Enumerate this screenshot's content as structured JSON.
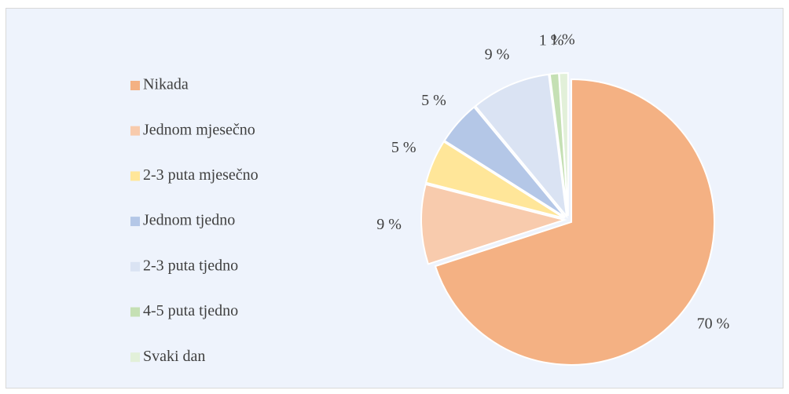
{
  "chart_data": {
    "type": "pie",
    "categories": [
      "Nikada",
      "Jednom mjesečno",
      "2-3 puta mjesečno",
      "Jednom tjedno",
      "2-3 puta tjedno",
      "4-5 puta tjedno",
      "Svaki dan"
    ],
    "values": [
      70,
      9,
      5,
      5,
      9,
      1,
      1
    ],
    "value_labels": [
      "70 %",
      "9 %",
      "5 %",
      "5 %",
      "9 %",
      "1 %",
      "1 %"
    ],
    "colors": [
      "#f4b183",
      "#f8cbad",
      "#ffe699",
      "#b4c7e7",
      "#dae3f3",
      "#c5e0b4",
      "#e2f0d9"
    ],
    "legend": "left"
  }
}
